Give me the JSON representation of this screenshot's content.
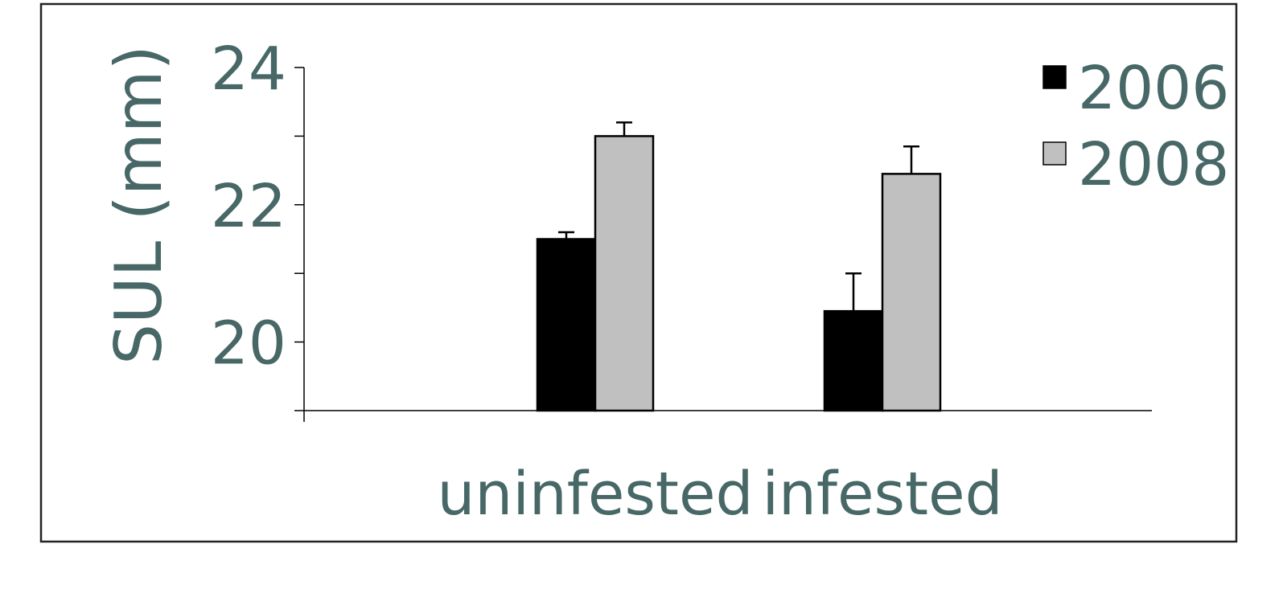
{
  "chart_data": {
    "type": "bar",
    "ylabel": "SUL (mm)",
    "categories": [
      "uninfested",
      "infested"
    ],
    "series": [
      {
        "name": "2006",
        "values": [
          21.5,
          20.45
        ],
        "errors": [
          0.1,
          0.55
        ],
        "color": "#000000"
      },
      {
        "name": "2008",
        "values": [
          23.0,
          22.45
        ],
        "errors": [
          0.2,
          0.4
        ],
        "color": "#c0c0c0"
      }
    ],
    "ylim": [
      19,
      24
    ],
    "yticks": [
      19,
      20,
      21,
      22,
      23,
      24
    ],
    "ytick_labels": [
      "",
      "20",
      "",
      "22",
      "",
      "24"
    ],
    "grid": false,
    "legend_position": "top-right",
    "colors": {
      "text": "#476866",
      "axis": "#000000",
      "frame": "#222222"
    }
  }
}
